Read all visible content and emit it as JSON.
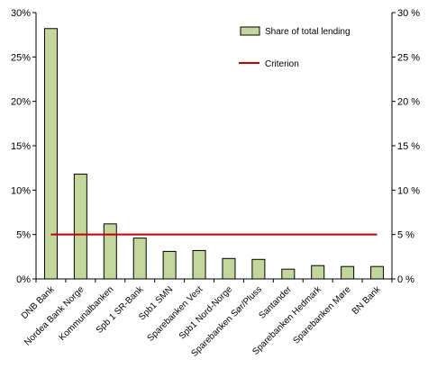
{
  "chart_data": {
    "type": "bar",
    "categories": [
      "DNB Bank",
      "Nordea Bank Norge",
      "Kommunalbanken",
      "Spb 1 SR-Bank",
      "Spb1 SMN",
      "Sparebanken Vest",
      "Spb1 Nord-Norge",
      "Sparebanken Sør/Pluss",
      "Santander",
      "Sparebanken Hedmark",
      "Sparebanken Møre",
      "BN Bank"
    ],
    "series": [
      {
        "name": "Share of total lending",
        "type": "bar",
        "color": "#c3d69b",
        "values": [
          28.2,
          11.8,
          6.2,
          4.6,
          3.1,
          3.2,
          2.3,
          2.2,
          1.1,
          1.5,
          1.4,
          1.4
        ]
      },
      {
        "name": "Criterion",
        "type": "line",
        "color": "#c00000",
        "values": [
          5,
          5,
          5,
          5,
          5,
          5,
          5,
          5,
          5,
          5,
          5,
          5
        ]
      }
    ],
    "ylim": [
      0,
      30
    ],
    "yticks": [
      "0%",
      "5%",
      "10%",
      "15%",
      "20%",
      "25%",
      "30%"
    ],
    "yticks_right": [
      "0 %",
      "5 %",
      "10 %",
      "15 %",
      "20 %",
      "25 %",
      "30 %"
    ],
    "legend_position": "top-right",
    "grid": false
  }
}
